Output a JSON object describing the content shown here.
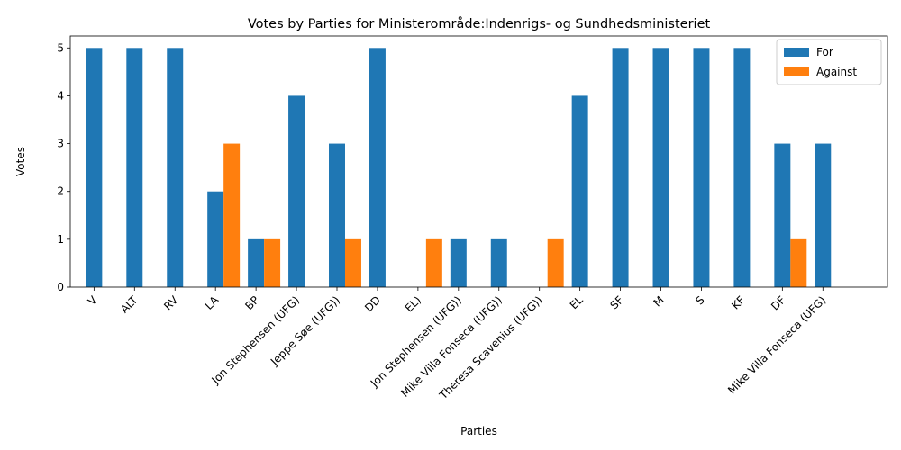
{
  "chart_data": {
    "type": "bar",
    "title": "Votes by Parties for Ministerområde:Indenrigs- og Sundhedsministeriet",
    "xlabel": "Parties",
    "ylabel": "Votes",
    "ylim": [
      0,
      5.25
    ],
    "yticks": [
      0,
      1,
      2,
      3,
      4,
      5
    ],
    "grid": false,
    "legend_position": "top-right",
    "categories": [
      "V",
      "ALT",
      "RV",
      "LA",
      "BP",
      "Jon Stephensen (UFG)",
      "Jeppe Søe (UFG))",
      "DD",
      "EL)",
      "Jon Stephensen (UFG))",
      "Mike Villa Fonseca (UFG))",
      "Theresa Scavenius (UFG))",
      "EL",
      "SF",
      "M",
      "S",
      "KF",
      "DF",
      "Mike Villa Fonseca (UFG)"
    ],
    "series": [
      {
        "name": "For",
        "color": "#1f77b4",
        "values": [
          5,
          5,
          5,
          2,
          1,
          4,
          3,
          5,
          0,
          1,
          1,
          0,
          4,
          5,
          5,
          5,
          5,
          3,
          3
        ]
      },
      {
        "name": "Against",
        "color": "#ff7f0e",
        "values": [
          0,
          0,
          0,
          3,
          1,
          0,
          1,
          0,
          1,
          0,
          0,
          1,
          0,
          0,
          0,
          0,
          0,
          1,
          0
        ]
      }
    ]
  }
}
